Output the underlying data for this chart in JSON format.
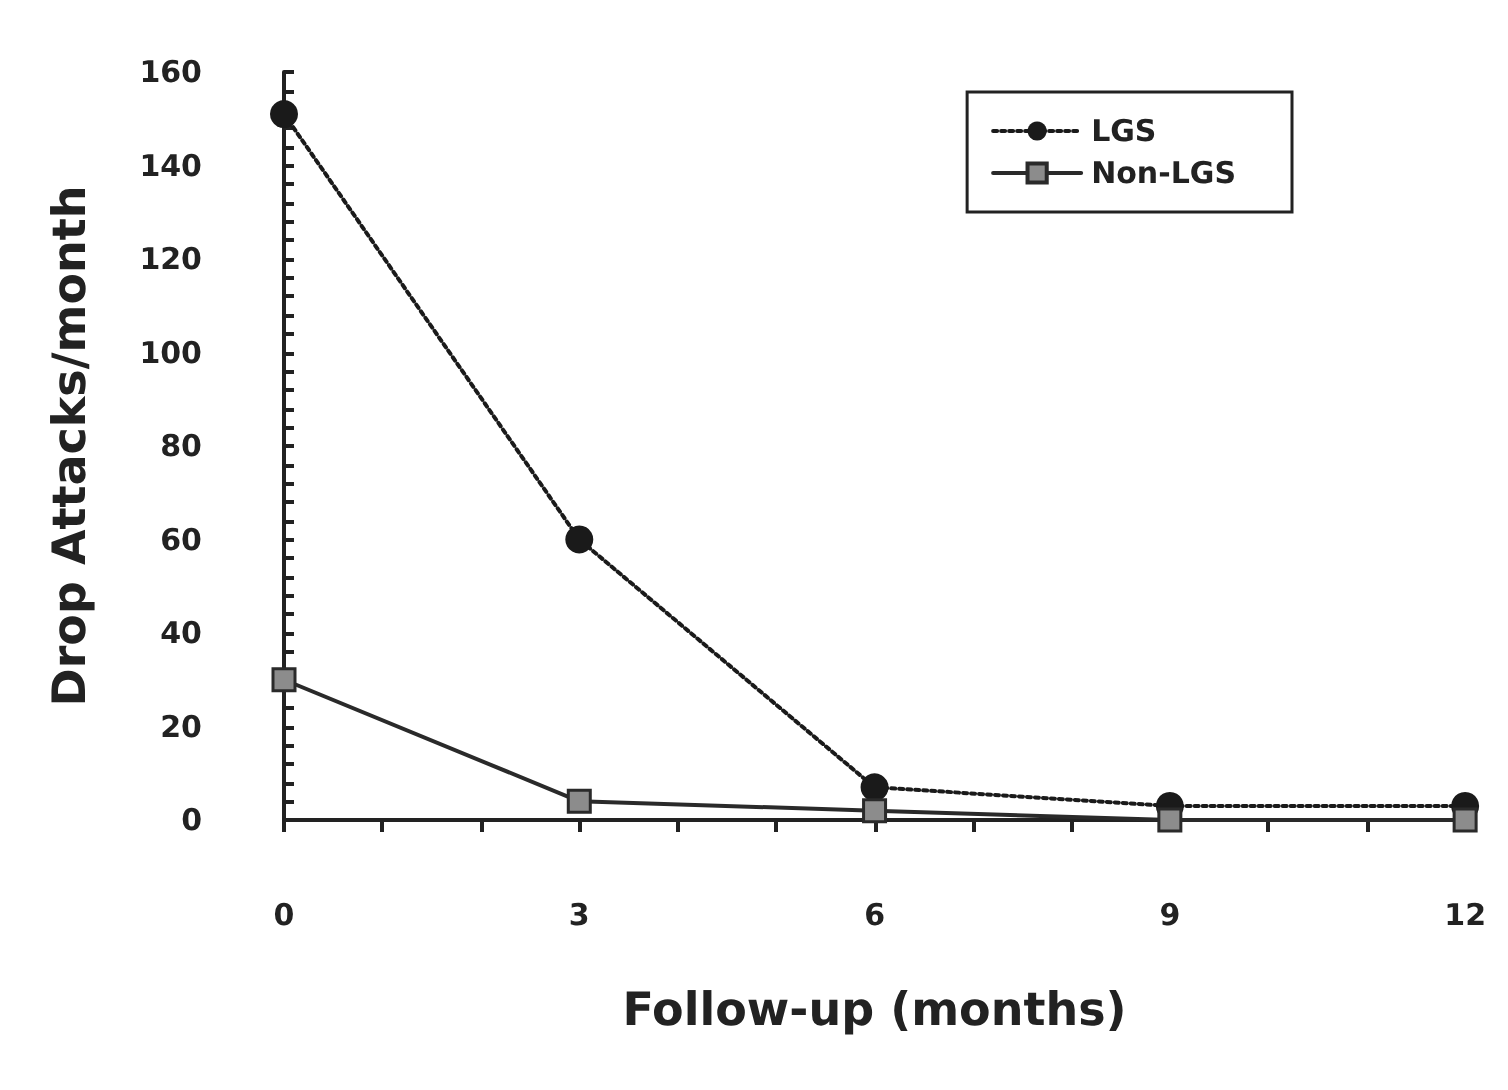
{
  "chart_data": {
    "type": "line",
    "xlabel": "Follow-up (months)",
    "ylabel": "Drop Attacks/month",
    "x": [
      0,
      3,
      6,
      9,
      12
    ],
    "series": [
      {
        "name": "LGS",
        "color": "#1a1a1a",
        "values": [
          151,
          60,
          7,
          3,
          3
        ],
        "marker": "circle",
        "line_style": "dotted"
      },
      {
        "name": "Non-LGS",
        "color": "#2a2a2a",
        "values": [
          30,
          4,
          2,
          0,
          0
        ],
        "marker": "square",
        "line_style": "solid"
      }
    ],
    "xlim": [
      0,
      12
    ],
    "xticks": [
      0,
      {
        "value": 1,
        "label": null
      },
      {
        "value": 2,
        "label": null
      },
      3,
      {
        "value": 4,
        "label": null
      },
      {
        "value": 5,
        "label": null
      },
      6,
      {
        "value": 7,
        "label": null
      },
      {
        "value": 8,
        "label": null
      },
      9,
      {
        "value": 10,
        "label": null
      },
      {
        "value": 11,
        "label": null
      },
      12
    ],
    "ylim": [
      0,
      160
    ],
    "yticks": [
      0,
      {
        "value": 4,
        "label": null
      },
      {
        "value": 8,
        "label": null
      },
      {
        "value": 12,
        "label": null
      },
      {
        "value": 16,
        "label": null
      },
      20,
      {
        "value": 24,
        "label": null
      },
      {
        "value": 28,
        "label": null
      },
      {
        "value": 32,
        "label": null
      },
      {
        "value": 36,
        "label": null
      },
      40,
      {
        "value": 44,
        "label": null
      },
      {
        "value": 48,
        "label": null
      },
      {
        "value": 52,
        "label": null
      },
      {
        "value": 56,
        "label": null
      },
      60,
      {
        "value": 64,
        "label": null
      },
      {
        "value": 68,
        "label": null
      },
      {
        "value": 72,
        "label": null
      },
      {
        "value": 76,
        "label": null
      },
      80,
      {
        "value": 84,
        "label": null
      },
      {
        "value": 88,
        "label": null
      },
      {
        "value": 92,
        "label": null
      },
      {
        "value": 96,
        "label": null
      },
      100,
      {
        "value": 104,
        "label": null
      },
      {
        "value": 108,
        "label": null
      },
      {
        "value": 112,
        "label": null
      },
      {
        "value": 116,
        "label": null
      },
      120,
      {
        "value": 124,
        "label": null
      },
      {
        "value": 128,
        "label": null
      },
      {
        "value": 132,
        "label": null
      },
      {
        "value": 136,
        "label": null
      },
      140,
      {
        "value": 144,
        "label": null
      },
      {
        "value": 148,
        "label": null
      },
      {
        "value": 152,
        "label": null
      },
      {
        "value": 156,
        "label": null
      },
      160
    ],
    "grid": false,
    "legend": "top right"
  }
}
